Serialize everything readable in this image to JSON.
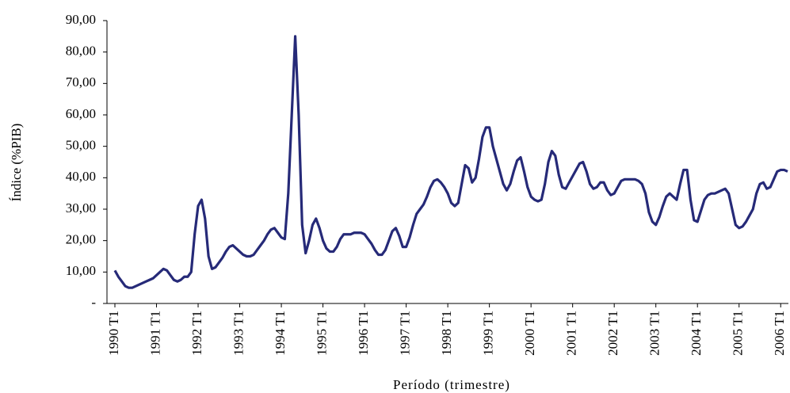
{
  "chart_data": {
    "type": "line",
    "x_label": "Período (trimestre)",
    "y_label": "Índice (%PIB)",
    "categories": [
      "1990 T1",
      null,
      null,
      null,
      null,
      null,
      null,
      null,
      null,
      null,
      null,
      null,
      "1991 T1",
      null,
      null,
      null,
      null,
      null,
      null,
      null,
      null,
      null,
      null,
      null,
      "1992 T1",
      null,
      null,
      null,
      null,
      null,
      null,
      null,
      null,
      null,
      null,
      null,
      "1993 T1",
      null,
      null,
      null,
      null,
      null,
      null,
      null,
      null,
      null,
      null,
      null,
      "1994 T1",
      null,
      null,
      null,
      null,
      null,
      null,
      null,
      null,
      null,
      null,
      null,
      "1995 T1",
      null,
      null,
      null,
      null,
      null,
      null,
      null,
      null,
      null,
      null,
      null,
      "1996 T1",
      null,
      null,
      null,
      null,
      null,
      null,
      null,
      null,
      null,
      null,
      null,
      "1997 T1",
      null,
      null,
      null,
      null,
      null,
      null,
      null,
      null,
      null,
      null,
      null,
      "1998 T1",
      null,
      null,
      null,
      null,
      null,
      null,
      null,
      null,
      null,
      null,
      null,
      "1999 T1",
      null,
      null,
      null,
      null,
      null,
      null,
      null,
      null,
      null,
      null,
      null,
      "2000 T1",
      null,
      null,
      null,
      null,
      null,
      null,
      null,
      null,
      null,
      null,
      null,
      "2001 T1",
      null,
      null,
      null,
      null,
      null,
      null,
      null,
      null,
      null,
      null,
      null,
      "2002 T1",
      null,
      null,
      null,
      null,
      null,
      null,
      null,
      null,
      null,
      null,
      null,
      "2003 T1",
      null,
      null,
      null,
      null,
      null,
      null,
      null,
      null,
      null,
      null,
      null,
      "2004 T1",
      null,
      null,
      null,
      null,
      null,
      null,
      null,
      null,
      null,
      null,
      null,
      "2005 T1",
      null,
      null,
      null,
      null,
      null,
      null,
      null,
      null,
      null,
      null,
      null,
      "2006 T1",
      null,
      null
    ],
    "values": [
      10.5,
      8.5,
      7,
      5.5,
      5,
      5,
      5.5,
      6,
      6.5,
      7,
      7.5,
      8,
      9,
      10,
      11,
      10.5,
      9,
      7.5,
      7,
      7.5,
      8.5,
      8.5,
      10,
      22,
      31,
      33,
      27,
      15,
      11,
      11.5,
      13,
      14.5,
      16.5,
      18,
      18.5,
      17.5,
      16.5,
      15.5,
      15,
      15,
      15.5,
      17,
      18.5,
      20,
      22,
      23.5,
      24,
      22.5,
      21,
      20.5,
      35,
      60,
      85,
      60,
      25,
      16,
      20,
      25,
      27,
      24,
      20,
      17.5,
      16.5,
      16.5,
      18,
      20.5,
      22,
      22,
      22,
      22.5,
      22.5,
      22.5,
      22,
      20.5,
      19,
      17,
      15.5,
      15.5,
      17,
      20,
      23,
      24,
      21.5,
      18,
      18,
      21,
      25,
      28.5,
      30,
      31.5,
      34,
      37,
      39,
      39.5,
      38.5,
      37,
      35,
      32,
      31,
      32,
      38,
      44,
      43,
      38.5,
      40,
      46,
      53,
      56,
      56,
      50,
      46,
      42,
      38,
      36,
      38,
      42,
      45.5,
      46.5,
      42,
      37,
      34,
      33,
      32.5,
      33,
      38,
      45,
      48.5,
      47,
      41,
      37,
      36.5,
      38.5,
      40.5,
      42.5,
      44.5,
      45,
      42,
      38,
      36.5,
      37,
      38.5,
      38.5,
      36,
      34.5,
      35,
      37,
      39,
      39.5,
      39.5,
      39.5,
      39.5,
      39,
      38,
      35,
      29,
      26,
      25,
      27.5,
      31,
      34,
      35,
      34,
      33,
      38,
      42.5,
      42.5,
      33,
      26.5,
      26,
      29.5,
      33,
      34.5,
      35,
      35,
      35.5,
      36,
      36.5,
      35,
      30,
      25,
      24,
      24.5,
      26,
      28,
      30,
      35,
      38,
      38.5,
      36.5,
      37,
      39.5,
      42,
      42.5,
      42.5,
      42
    ],
    "color": "#262a78",
    "ylim": [
      0,
      90
    ],
    "yticks": [
      {
        "value": 0,
        "label": "-"
      },
      {
        "value": 10,
        "label": "10,00"
      },
      {
        "value": 20,
        "label": "20,00"
      },
      {
        "value": 30,
        "label": "30,00"
      },
      {
        "value": 40,
        "label": "40,00"
      },
      {
        "value": 50,
        "label": "50,00"
      },
      {
        "value": 60,
        "label": "60,00"
      },
      {
        "value": 70,
        "label": "70,00"
      },
      {
        "value": 80,
        "label": "80,00"
      },
      {
        "value": 90,
        "label": "90,00"
      }
    ],
    "grid": false
  }
}
